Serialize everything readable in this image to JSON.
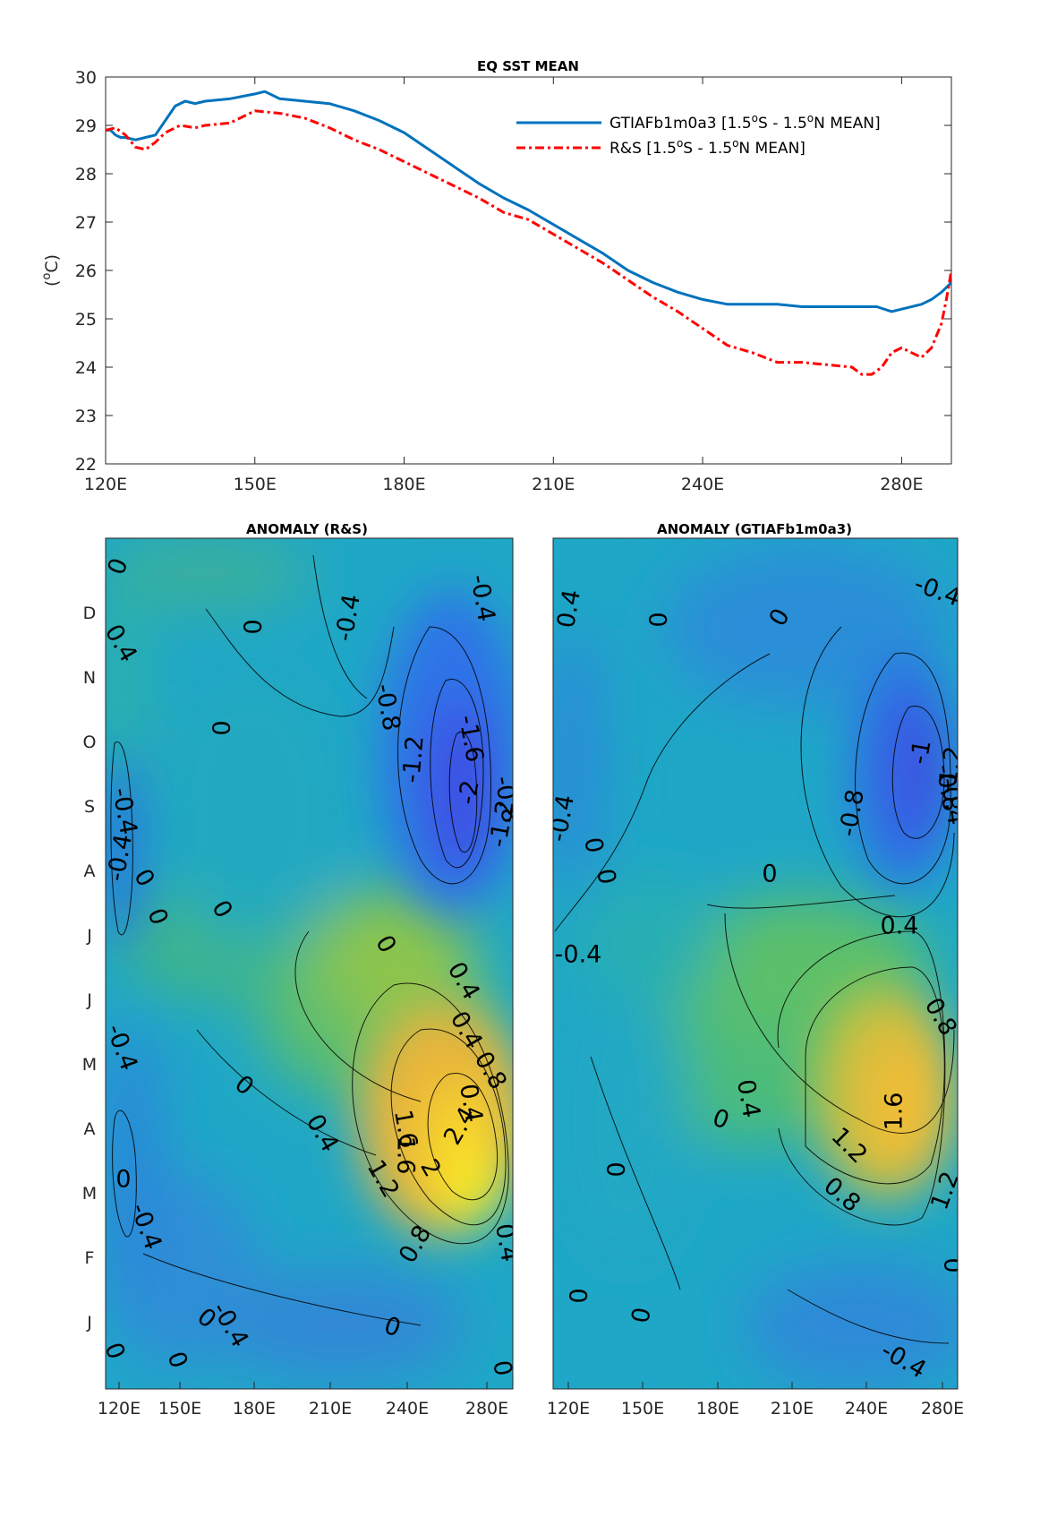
{
  "chart_data": [
    {
      "type": "line",
      "title": "EQ SST MEAN",
      "ylabel": "(°C)",
      "ylabel_parts": {
        "open": "(",
        "sup": "o",
        "unit": "C)"
      },
      "xlim": [
        120,
        290
      ],
      "ylim": [
        22,
        30
      ],
      "xticks": [
        120,
        150,
        180,
        210,
        240,
        280
      ],
      "xtick_labels": [
        "120E",
        "150E",
        "180E",
        "210E",
        "240E",
        "280E"
      ],
      "yticks": [
        22,
        23,
        24,
        25,
        26,
        27,
        28,
        29,
        30
      ],
      "ytick_labels": [
        "22",
        "23",
        "24",
        "25",
        "26",
        "27",
        "28",
        "29",
        "30"
      ],
      "legend_position": "top-right",
      "series": [
        {
          "name": "GTIAFb1m0a3 [1.5°S - 1.5°N MEAN]",
          "legend_parts": [
            "GTIAFb1m0a3 [1.5",
            "o",
            "S - 1.5",
            "o",
            "N MEAN]"
          ],
          "color": "#0072BD",
          "style": "solid",
          "x": [
            120,
            121,
            122,
            123,
            124,
            126,
            128,
            130,
            132,
            134,
            136,
            138,
            140,
            145,
            150,
            152,
            155,
            160,
            165,
            170,
            175,
            180,
            185,
            190,
            195,
            200,
            205,
            210,
            215,
            220,
            225,
            230,
            235,
            240,
            245,
            250,
            255,
            260,
            265,
            270,
            275,
            278,
            280,
            282,
            284,
            286,
            288,
            290
          ],
          "y": [
            28.9,
            28.9,
            28.8,
            28.75,
            28.75,
            28.7,
            28.75,
            28.8,
            29.1,
            29.4,
            29.5,
            29.45,
            29.5,
            29.55,
            29.65,
            29.7,
            29.55,
            29.5,
            29.45,
            29.3,
            29.1,
            28.85,
            28.5,
            28.15,
            27.8,
            27.5,
            27.25,
            26.95,
            26.65,
            26.35,
            26.0,
            25.75,
            25.55,
            25.4,
            25.3,
            25.3,
            25.3,
            25.25,
            25.25,
            25.25,
            25.25,
            25.15,
            25.2,
            25.25,
            25.3,
            25.4,
            25.55,
            25.75
          ]
        },
        {
          "name": "R&S [1.5°S - 1.5°N MEAN]",
          "legend_parts": [
            "R&S [1.5",
            "o",
            "S - 1.5",
            "o",
            "N MEAN]"
          ],
          "color": "#FF0000",
          "style": "dash-dot",
          "x": [
            120,
            122,
            124,
            126,
            128,
            130,
            132,
            135,
            138,
            140,
            145,
            150,
            155,
            160,
            165,
            170,
            175,
            180,
            185,
            190,
            195,
            200,
            205,
            210,
            215,
            220,
            225,
            230,
            235,
            240,
            245,
            250,
            255,
            260,
            265,
            270,
            272,
            274,
            276,
            278,
            280,
            282,
            284,
            286,
            288,
            289,
            290
          ],
          "y": [
            28.9,
            28.95,
            28.8,
            28.55,
            28.5,
            28.65,
            28.85,
            29.0,
            28.95,
            29.0,
            29.05,
            29.3,
            29.25,
            29.15,
            28.95,
            28.7,
            28.5,
            28.25,
            28.0,
            27.75,
            27.5,
            27.2,
            27.05,
            26.75,
            26.45,
            26.15,
            25.8,
            25.45,
            25.15,
            24.8,
            24.45,
            24.3,
            24.1,
            24.1,
            24.05,
            24.0,
            23.85,
            23.85,
            24.0,
            24.3,
            24.4,
            24.3,
            24.2,
            24.4,
            24.9,
            25.4,
            26.0
          ]
        }
      ]
    },
    {
      "type": "heatmap",
      "title": "ANOMALY (R&S)",
      "xlim": [
        120,
        290
      ],
      "xtick_labels": [
        "120E",
        "150E",
        "180E",
        "210E",
        "240E",
        "280E"
      ],
      "ytick_labels": [
        "J",
        "F",
        "M",
        "A",
        "M",
        "J",
        "J",
        "A",
        "S",
        "O",
        "N",
        "D"
      ],
      "colormap": "parula",
      "contour_labels": [
        "0",
        "0.4",
        "0",
        "-0.4",
        "-0.4",
        "0",
        "-0.8",
        "-1.2",
        "-1.6",
        "-2",
        "-0.8",
        "-1.2",
        "-0.4",
        "-0.4",
        "0",
        "0",
        "0",
        "0",
        "-0.4",
        "0.4",
        "0.4",
        "0.8",
        "0.4",
        "0",
        "0.4",
        "1.6",
        "2.4",
        "1.6",
        "2",
        "1.2",
        "0.8",
        "0.4",
        "0",
        "-0.4",
        "0",
        "0",
        "-0.4",
        "0",
        "0",
        "0"
      ]
    },
    {
      "type": "heatmap",
      "title": "ANOMALY (GTIAFb1m0a3)",
      "xlim": [
        120,
        290
      ],
      "xtick_labels": [
        "120E",
        "150E",
        "180E",
        "210E",
        "240E",
        "280E"
      ],
      "colormap": "parula",
      "contour_labels": [
        "0.4",
        "0",
        "0",
        "-0.4",
        "-0.4",
        "-1",
        "-1.2",
        "-0.8",
        "-0.8",
        "-0.4",
        "0",
        "0",
        "0",
        "-0.4",
        "0.4",
        "0.8",
        "0.4",
        "0",
        "1.6",
        "1.2",
        "0.8",
        "1.2",
        "0",
        "0",
        "0",
        "0",
        "-0.4"
      ]
    }
  ]
}
